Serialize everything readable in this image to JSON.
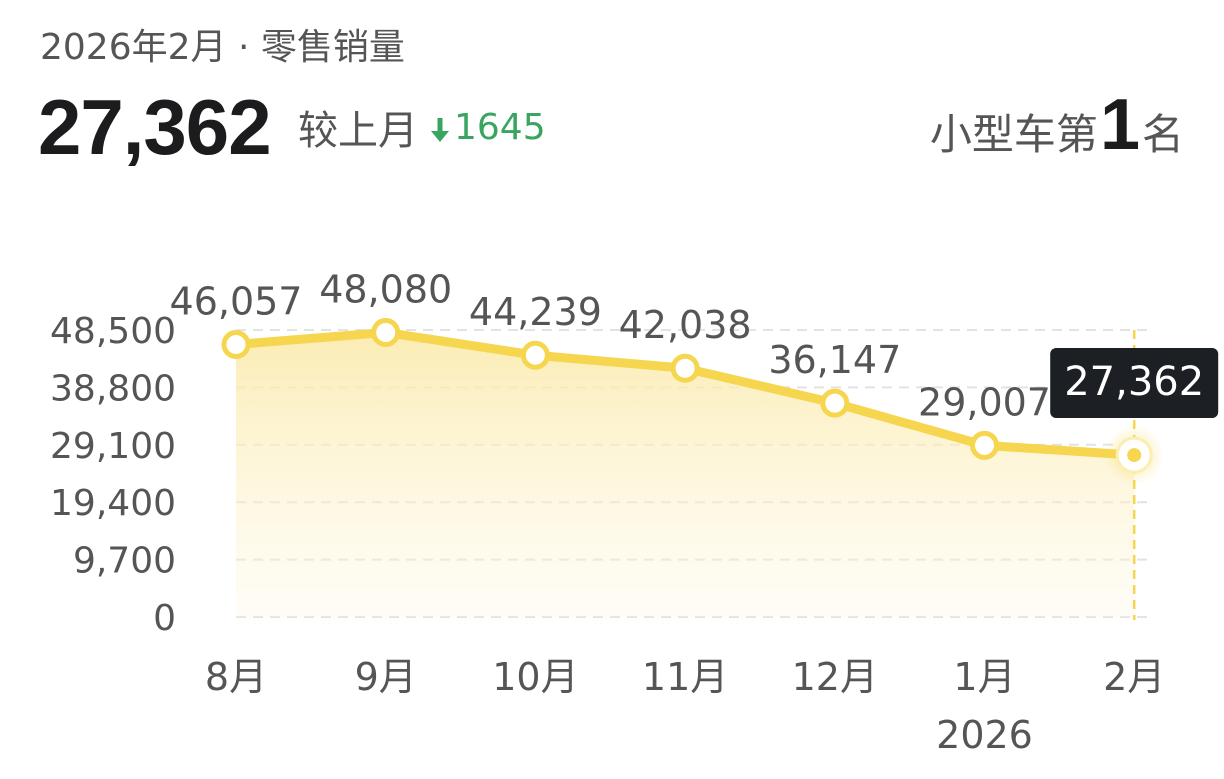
{
  "header": {
    "subtitle": "2026年2月 · 零售销量",
    "value": "27,362",
    "compare_label": "较上月",
    "compare_delta": "1645",
    "rank_prefix": "小型车第",
    "rank_number": "1",
    "rank_suffix": "名"
  },
  "colors": {
    "line": "#f5d64e",
    "accent_green": "#3aa561",
    "tooltip_bg": "#1c1f24",
    "text": "#555555"
  },
  "chart_data": {
    "type": "area",
    "categories": [
      "8月",
      "9月",
      "10月",
      "11月",
      "12月",
      "1月",
      "2月"
    ],
    "year_label": "2026",
    "year_label_under": "1月",
    "values": [
      46057,
      48080,
      44239,
      42038,
      36147,
      29007,
      27362
    ],
    "value_labels": [
      "46,057",
      "48,080",
      "44,239",
      "42,038",
      "36,147",
      "29,007",
      "27,362"
    ],
    "y_ticks": [
      0,
      9700,
      19400,
      29100,
      38800,
      48500
    ],
    "y_tick_labels": [
      "0",
      "9,700",
      "19,400",
      "29,100",
      "38,800",
      "48,500"
    ],
    "ylim": [
      0,
      48500
    ],
    "grid": true,
    "highlight_index": 6,
    "tooltip": "27,362"
  }
}
